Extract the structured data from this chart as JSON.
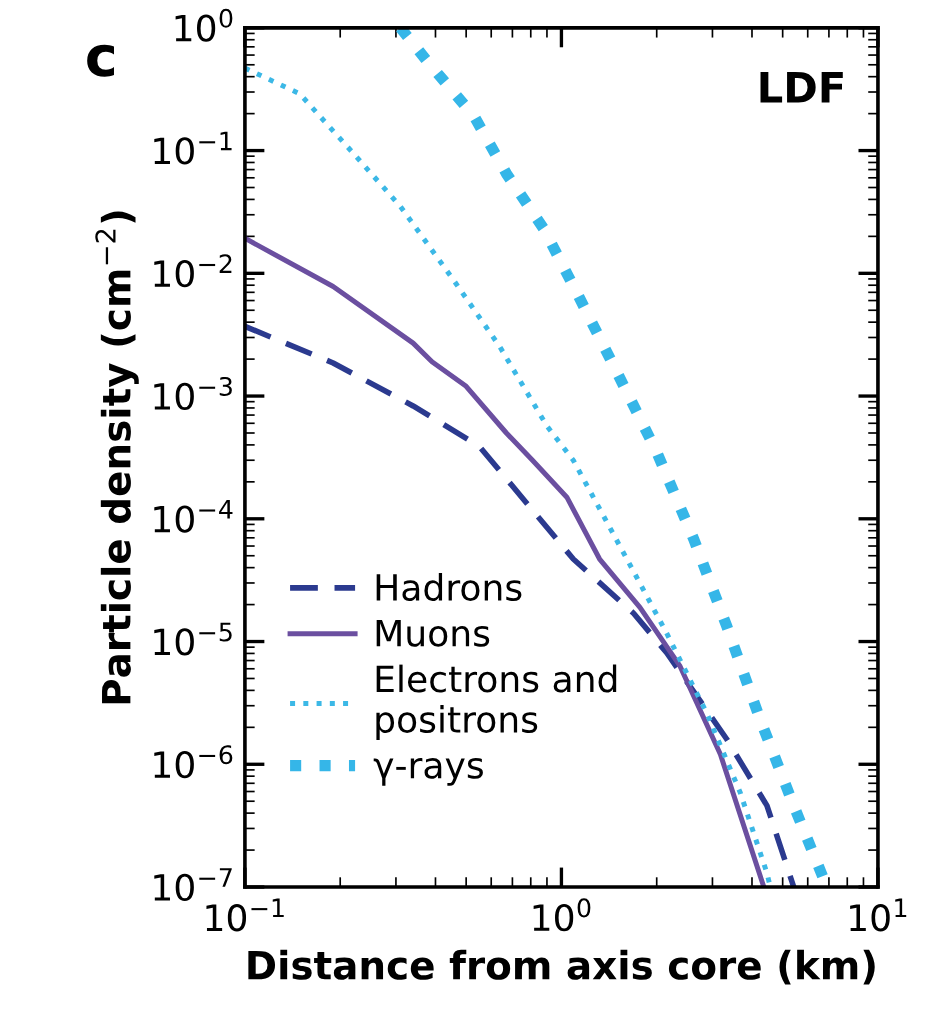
{
  "chart_data": {
    "type": "line",
    "xlabel": "Distance from axis core (km)",
    "ylabel": "Particle density (cm$^{−2}$)",
    "log": "xy",
    "xlim": [
      0.1,
      10
    ],
    "ylim": [
      1e-07,
      1
    ],
    "xticks": [
      {
        "value": 0.1,
        "label": "10$^{−1}$"
      },
      {
        "value": 1,
        "label": "10$^{0}$"
      },
      {
        "value": 10,
        "label": "10$^{1}$"
      }
    ],
    "yticks": [
      {
        "value": 1e-07,
        "label": "10$^{−7}$"
      },
      {
        "value": 1e-06,
        "label": "10$^{−6}$"
      },
      {
        "value": 1e-05,
        "label": "10$^{−5}$"
      },
      {
        "value": 0.0001,
        "label": "10$^{−4}$"
      },
      {
        "value": 0.001,
        "label": "10$^{−3}$"
      },
      {
        "value": 0.01,
        "label": "10$^{−2}$"
      },
      {
        "value": 0.1,
        "label": "10$^{−1}$"
      },
      {
        "value": 1,
        "label": "10$^{0}$"
      }
    ],
    "annotations": [
      "c",
      "LDF"
    ],
    "legend": "bottom left",
    "grid": false,
    "series": [
      {
        "name": "Hadrons",
        "color": "#2b3a8f",
        "line_style": "dashed",
        "x": [
          0.1,
          0.19,
          0.34,
          0.55,
          1.09,
          1.69,
          2.15,
          3.33,
          4.46,
          5.42
        ],
        "values": [
          0.0037,
          0.00186,
          0.00083,
          0.00039,
          4.7e-05,
          1.7e-05,
          8.1e-06,
          1.6e-06,
          4.6e-07,
          1e-07
        ]
      },
      {
        "name": "Muons",
        "color": "#6b4fa0",
        "line_style": "solid",
        "x": [
          0.1,
          0.19,
          0.34,
          0.39,
          0.5,
          0.67,
          0.81,
          1.04,
          1.32,
          1.77,
          2.37,
          3.18,
          4.36
        ],
        "values": [
          0.0193,
          0.0078,
          0.0027,
          0.0019,
          0.0012,
          0.0005,
          0.0003,
          0.00015,
          4.7e-05,
          1.9e-05,
          6.3e-06,
          1.2e-06,
          1e-07
        ]
      },
      {
        "name": "Electrons and\npositrons",
        "color": "#3cb8e6",
        "line_style": "dotted",
        "x": [
          0.1,
          0.149,
          0.22,
          0.31,
          0.455,
          0.64,
          0.9,
          1.09,
          1.61,
          2.15,
          2.88,
          3.67,
          4.46,
          4.57
        ],
        "values": [
          0.47,
          0.29,
          0.095,
          0.035,
          0.0089,
          0.0025,
          0.00057,
          0.0003,
          4.7e-05,
          1.17e-05,
          2.6e-06,
          5.9e-07,
          1.3e-07,
          1e-07
        ]
      },
      {
        "name": "γ-rays",
        "color": "#35b6e8",
        "line_style": "dotted",
        "x": [
          0.31,
          0.38,
          0.53,
          0.67,
          0.88,
          1.12,
          1.5,
          2.0,
          2.62,
          3.33,
          4.25,
          5.42,
          6.75
        ],
        "values": [
          1.0,
          0.52,
          0.19,
          0.065,
          0.023,
          0.0069,
          0.00155,
          0.00035,
          6.8e-05,
          1.33e-05,
          2.3e-06,
          4.6e-07,
          1.15e-07
        ]
      }
    ]
  }
}
